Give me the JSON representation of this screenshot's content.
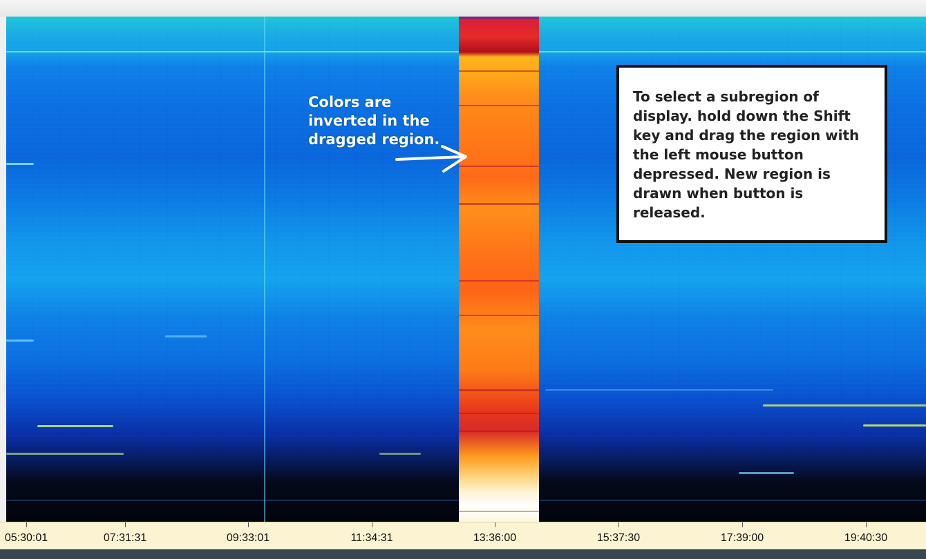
{
  "display": {
    "colormap_outside": "blue-cyan",
    "colormap_selection": "inverted red-orange-white",
    "background_color": "#0a66dc",
    "selection_color": "#ff7a18"
  },
  "annotations": {
    "left_note": "Colors are inverted in the dragged region.",
    "right_note": "To select a subregion of display. hold down the Shift key and drag the region with the left mouse button depressed.  New region is drawn when button is released."
  },
  "time_axis": {
    "labels": [
      "05:30:01",
      "07:31:31",
      "09:33:01",
      "11:34:31",
      "13:36:00",
      "15:37:30",
      "17:39:00",
      "19:40:30"
    ]
  }
}
